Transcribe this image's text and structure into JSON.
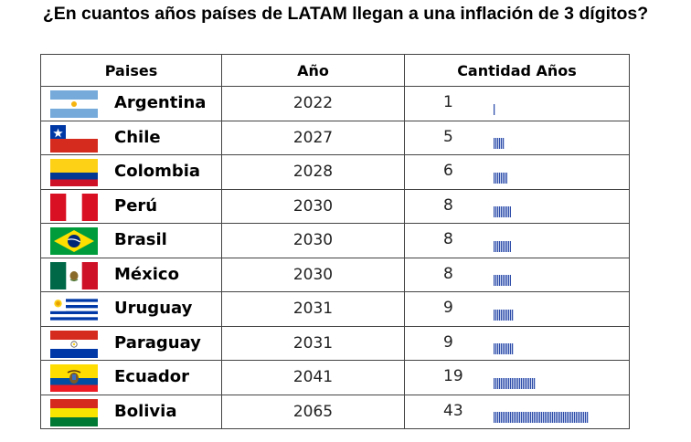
{
  "title": "¿En cuantos años países de LATAM llegan a una inflación de 3 dígitos?",
  "headers": {
    "country": "Paises",
    "year": "Año",
    "count": "Cantidad Años"
  },
  "rows": [
    {
      "country": "Argentina",
      "flag": "argentina-flag",
      "year": "2022",
      "years": 1
    },
    {
      "country": "Chile",
      "flag": "chile-flag",
      "year": "2027",
      "years": 5
    },
    {
      "country": "Colombia",
      "flag": "colombia-flag",
      "year": "2028",
      "years": 6
    },
    {
      "country": "Perú",
      "flag": "peru-flag",
      "year": "2030",
      "years": 8
    },
    {
      "country": "Brasil",
      "flag": "brazil-flag",
      "year": "2030",
      "years": 8
    },
    {
      "country": "México",
      "flag": "mexico-flag",
      "year": "2030",
      "years": 8
    },
    {
      "country": "Uruguay",
      "flag": "uruguay-flag",
      "year": "2031",
      "years": 9
    },
    {
      "country": "Paraguay",
      "flag": "paraguay-flag",
      "year": "2031",
      "years": 9
    },
    {
      "country": "Ecuador",
      "flag": "ecuador-flag",
      "year": "2041",
      "years": 19
    },
    {
      "country": "Bolivia",
      "flag": "bolivia-flag",
      "year": "2065",
      "years": 43
    }
  ],
  "chart_data": {
    "type": "table",
    "title": "¿En cuantos años países de LATAM llegan a una inflación de 3 dígitos?",
    "columns": [
      "Paises",
      "Año",
      "Cantidad Años"
    ],
    "categories": [
      "Argentina",
      "Chile",
      "Colombia",
      "Perú",
      "Brasil",
      "México",
      "Uruguay",
      "Paraguay",
      "Ecuador",
      "Bolivia"
    ],
    "year": [
      2022,
      2027,
      2028,
      2030,
      2030,
      2030,
      2031,
      2031,
      2041,
      2065
    ],
    "values": [
      1,
      5,
      6,
      8,
      8,
      8,
      9,
      9,
      19,
      43
    ],
    "in_cell_bars": true,
    "bar_color": "#2f4da8"
  }
}
